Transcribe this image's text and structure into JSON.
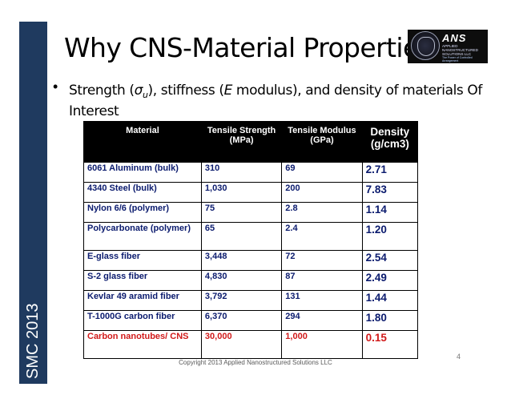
{
  "sidebar": {
    "label": "SMC 2013"
  },
  "title": "Why CNS-Material Properties",
  "logo": {
    "name": "ANS",
    "subtitle": "APPLIED NANOSTRUCTURED SOLUTIONS LLC",
    "tagline": "The Power of Controlled Arrangement"
  },
  "bullet": {
    "text_before": "Strength (",
    "sigma": "σ",
    "sub": "u",
    "text_mid": "), stiffness (",
    "e": "E",
    "text_after": " modulus), and density of materials Of Interest"
  },
  "table": {
    "headers": [
      "Material",
      "Tensile Strength (MPa)",
      "Tensile Modulus (GPa)",
      "Density (g/cm3)"
    ],
    "rows": [
      {
        "material": "6061 Aluminum (bulk)",
        "strength": "310",
        "modulus": "69",
        "density": "2.71"
      },
      {
        "material": "4340 Steel (bulk)",
        "strength": "1,030",
        "modulus": "200",
        "density": "7.83"
      },
      {
        "material": "Nylon 6/6 (polymer)",
        "strength": "75",
        "modulus": "2.8",
        "density": "1.14"
      },
      {
        "material": "Polycarbonate (polymer)",
        "strength": "65",
        "modulus": "2.4",
        "density": "1.20"
      },
      {
        "material": "E-glass fiber",
        "strength": "3,448",
        "modulus": "72",
        "density": "2.54"
      },
      {
        "material": "S-2 glass fiber",
        "strength": "4,830",
        "modulus": "87",
        "density": "2.49"
      },
      {
        "material": "Kevlar 49 aramid fiber",
        "strength": "3,792",
        "modulus": "131",
        "density": "1.44"
      },
      {
        "material": "T-1000G carbon fiber",
        "strength": "6,370",
        "modulus": "294",
        "density": "1.80"
      },
      {
        "material": "Carbon nanotubes/ CNS",
        "strength": "30,000",
        "modulus": "1,000",
        "density": "0.15"
      }
    ]
  },
  "footer": "Copyright 2013 Applied Nanostructured Solutions LLC",
  "page_number": "4"
}
